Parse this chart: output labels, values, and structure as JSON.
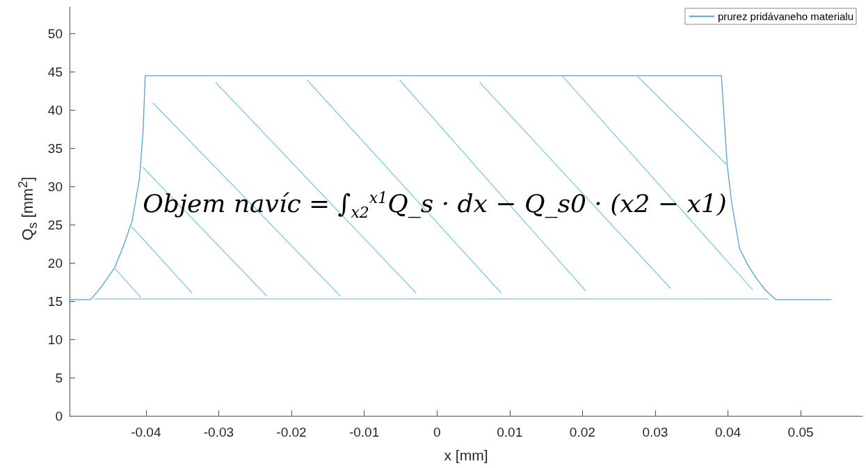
{
  "chart_data": {
    "type": "line",
    "xlabel": "x [mm]",
    "ylabel": "Q$_{s}$ [mm$^{2}$]",
    "annotations": [
      "Objem navíc = ∫$_{x2}$$^{x1}$Q_s · dx − Q_s0 · (x2 − x1)"
    ],
    "xlim": [
      -0.0505,
      0.0585
    ],
    "xticks": [
      -0.04,
      -0.03,
      -0.02,
      -0.01,
      0,
      0.01,
      0.02,
      0.03,
      0.04,
      0.05
    ],
    "ylim": [
      0,
      53.5
    ],
    "yticks": [
      0,
      5,
      10,
      15,
      20,
      25,
      30,
      35,
      40,
      45,
      50
    ],
    "grid": false,
    "legend": "top right",
    "marker": "none",
    "line_style": "solid",
    "series": [
      {
        "name": "prurez pridávaneho materialu",
        "color": "#4fa3d4",
        "x": [
          -0.0505,
          -0.0476,
          -0.0462,
          -0.0443,
          -0.0431,
          -0.0419,
          -0.0409,
          -0.0404,
          -0.0401,
          0.0391,
          0.0399,
          0.0405,
          0.0416,
          0.0427,
          0.0439,
          0.0452,
          0.0466,
          0.0542
        ],
        "values": [
          15.2,
          15.2,
          16.8,
          19.4,
          22.2,
          25.5,
          31,
          37.1,
          44.5,
          44.5,
          32.8,
          28,
          21.9,
          19.8,
          18,
          16.4,
          15.2,
          15.2
        ]
      },
      {
        "color": "#7ccbe6",
        "x": [
          -0.0471,
          0.0456
        ],
        "values": [
          15.3,
          15.3
        ]
      },
      {
        "color": "#7ccbe6",
        "x": [
          -0.0443,
          -0.0407
        ],
        "values": [
          19.3,
          15.5
        ]
      },
      {
        "color": "#7ccbe6",
        "x": [
          -0.0419,
          -0.0337
        ],
        "values": [
          24.7,
          16.1
        ]
      },
      {
        "color": "#7ccbe6",
        "x": [
          -0.0404,
          -0.0234
        ],
        "values": [
          32.5,
          15.7
        ]
      },
      {
        "color": "#7ccbe6",
        "x": [
          -0.039,
          -0.0133
        ],
        "values": [
          40.9,
          15.7
        ]
      },
      {
        "color": "#7ccbe6",
        "x": [
          -0.0304,
          -0.0029
        ],
        "values": [
          43.6,
          16.1
        ]
      },
      {
        "color": "#7ccbe6",
        "x": [
          -0.0178,
          0.0088
        ],
        "values": [
          43.9,
          16.1
        ]
      },
      {
        "color": "#7ccbe6",
        "x": [
          -0.0051,
          0.0204
        ],
        "values": [
          43.9,
          16.4
        ]
      },
      {
        "color": "#7ccbe6",
        "x": [
          0.0059,
          0.0321
        ],
        "values": [
          43.6,
          16.7
        ]
      },
      {
        "color": "#7ccbe6",
        "x": [
          0.0172,
          0.0434
        ],
        "values": [
          44.5,
          16.5
        ]
      },
      {
        "color": "#7ccbe6",
        "x": [
          0.0275,
          0.0399
        ],
        "values": [
          44.5,
          32.8
        ]
      }
    ]
  }
}
